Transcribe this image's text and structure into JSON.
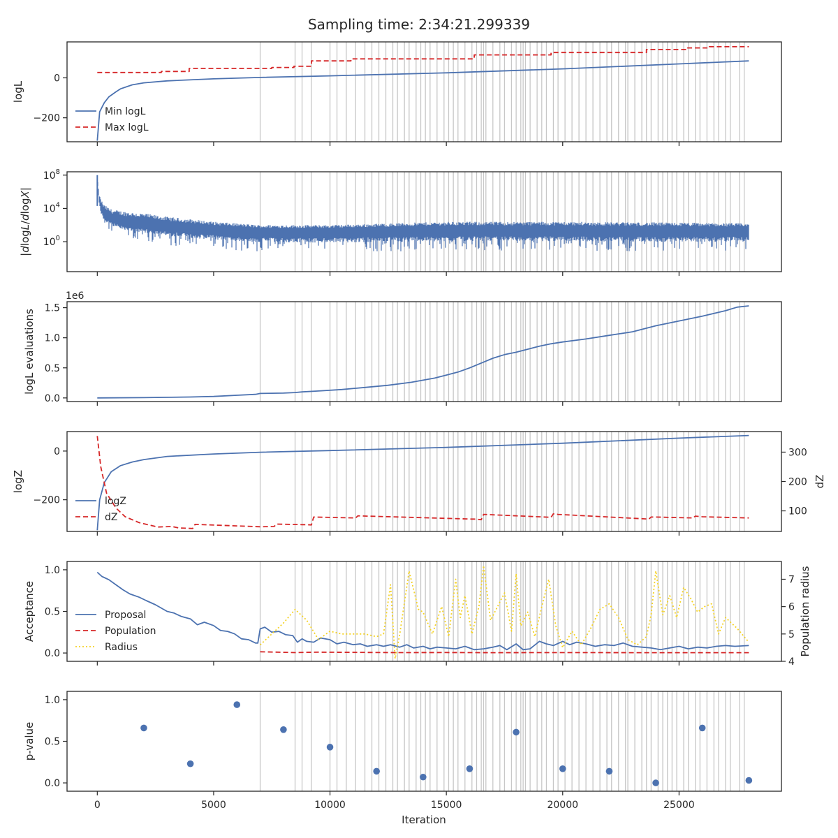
{
  "title": "Sampling time: 2:34:21.299339",
  "xlabel": "Iteration",
  "colors": {
    "blue": "#4c72b0",
    "red": "#d62728",
    "yellow": "#f5d327",
    "vline": "#c8c8c8",
    "axes": "#262626"
  },
  "x_ticks": [
    {
      "value": 0,
      "label": "0"
    },
    {
      "value": 5000,
      "label": "5000"
    },
    {
      "value": 10000,
      "label": "10000"
    },
    {
      "value": 15000,
      "label": "15000"
    },
    {
      "value": 20000,
      "label": "20000"
    },
    {
      "value": 25000,
      "label": "25000"
    }
  ],
  "chart_data": [
    {
      "id": "logL",
      "type": "line",
      "ylabel": "logL",
      "xlim": [
        -1300,
        29400
      ],
      "ylim": [
        -320,
        180
      ],
      "y_ticks": [
        {
          "value": 0,
          "label": "0"
        },
        {
          "value": -200,
          "label": "−200"
        }
      ],
      "legend": [
        "Min logL",
        "Max logL"
      ],
      "series": [
        {
          "name": "Min logL",
          "style": "solid",
          "color": "blue",
          "x": [
            0,
            100,
            300,
            500,
            800,
            1000,
            1500,
            2000,
            3000,
            5000,
            7000,
            10000,
            15000,
            20000,
            25000,
            28000
          ],
          "y": [
            -315,
            -170,
            -125,
            -95,
            -70,
            -55,
            -35,
            -25,
            -15,
            -5,
            2,
            10,
            25,
            45,
            70,
            85
          ]
        },
        {
          "name": "Max logL",
          "style": "dashed",
          "color": "red",
          "x": [
            0,
            2750,
            2750,
            3950,
            3950,
            7500,
            7500,
            8450,
            8450,
            9200,
            9200,
            10900,
            10900,
            16200,
            16200,
            19500,
            19500,
            23600,
            23600,
            25300,
            25300,
            26300,
            26300,
            28000
          ],
          "y": [
            27,
            27,
            32,
            32,
            47,
            47,
            52,
            52,
            58,
            58,
            85,
            85,
            95,
            95,
            115,
            115,
            127,
            127,
            142,
            142,
            150,
            150,
            156,
            156
          ]
        }
      ]
    },
    {
      "id": "dlogL",
      "type": "line",
      "ylabel": "|dlogL/dlogX|",
      "yscale": "log",
      "xlim": [
        -1300,
        29400
      ],
      "ylim": [
        -3.6,
        8.4
      ],
      "y_ticks": [
        {
          "value": 8,
          "label": "10",
          "exp": "8"
        },
        {
          "value": 4,
          "label": "10",
          "exp": "4"
        },
        {
          "value": 0,
          "label": "10",
          "exp": "0"
        }
      ],
      "series": [
        {
          "name": "",
          "style": "noisy",
          "color": "blue",
          "envelope": {
            "x": [
              0,
              30,
              80,
              150,
              300,
              600,
              1000,
              2000,
              3000,
              5000,
              7000,
              10000,
              15000,
              20000,
              25000,
              28000
            ],
            "center": [
              8,
              6.5,
              5.2,
              4.2,
              3.4,
              2.9,
              2.6,
              2.3,
              2.0,
              1.6,
              1.3,
              1.3,
              1.5,
              1.5,
              1.4,
              1.4
            ],
            "spread_up": [
              0,
              0.3,
              0.5,
              0.9,
              1.0,
              1.0,
              1.1,
              1.1,
              1.0,
              0.8,
              0.7,
              0.7,
              0.9,
              0.9,
              0.9,
              0.8
            ],
            "spread_down": [
              0,
              0.8,
              1.0,
              1.4,
              1.6,
              1.8,
              2.0,
              2.2,
              2.4,
              2.5,
              2.5,
              2.6,
              2.6,
              2.6,
              2.6,
              2.5
            ]
          }
        }
      ]
    },
    {
      "id": "evals",
      "type": "line",
      "ylabel": "logL evaluations",
      "offset_text": "1e6",
      "xlim": [
        -1300,
        29400
      ],
      "ylim": [
        -0.06,
        1.6
      ],
      "y_ticks": [
        {
          "value": 0,
          "label": "0.0"
        },
        {
          "value": 0.5,
          "label": "0.5"
        },
        {
          "value": 1.0,
          "label": "1.0"
        },
        {
          "value": 1.5,
          "label": "1.5"
        }
      ],
      "series": [
        {
          "name": "",
          "style": "solid",
          "color": "blue",
          "x": [
            0,
            2000,
            4000,
            5000,
            6000,
            6800,
            7000,
            8000,
            8500,
            8800,
            9500,
            10500,
            11500,
            12500,
            13500,
            14500,
            15000,
            15500,
            16000,
            16500,
            17000,
            17500,
            18000,
            19000,
            19500,
            20000,
            21000,
            22000,
            23000,
            24000,
            25000,
            26000,
            27000,
            27500,
            28000
          ],
          "y": [
            0,
            0.005,
            0.015,
            0.025,
            0.045,
            0.06,
            0.075,
            0.08,
            0.09,
            0.1,
            0.115,
            0.14,
            0.175,
            0.21,
            0.26,
            0.33,
            0.38,
            0.43,
            0.5,
            0.58,
            0.66,
            0.72,
            0.76,
            0.86,
            0.9,
            0.93,
            0.98,
            1.04,
            1.1,
            1.2,
            1.28,
            1.36,
            1.45,
            1.51,
            1.53
          ]
        }
      ]
    },
    {
      "id": "logZ",
      "type": "line",
      "ylabel": "logZ",
      "ylabel2": "dZ",
      "xlim": [
        -1300,
        29400
      ],
      "ylim": [
        -330,
        80
      ],
      "ylim2": [
        30,
        370
      ],
      "y_ticks": [
        {
          "value": 0,
          "label": "0"
        },
        {
          "value": -200,
          "label": "−200"
        }
      ],
      "y2_ticks": [
        {
          "value": 300,
          "label": "300"
        },
        {
          "value": 200,
          "label": "200"
        },
        {
          "value": 100,
          "label": "100"
        }
      ],
      "legend": [
        "logZ",
        "dZ"
      ],
      "series": [
        {
          "name": "logZ",
          "style": "solid",
          "color": "blue",
          "axis": "left",
          "x": [
            0,
            100,
            300,
            600,
            1000,
            1500,
            2000,
            3000,
            5000,
            7000,
            10000,
            15000,
            20000,
            25000,
            28000
          ],
          "y": [
            -325,
            -200,
            -130,
            -85,
            -60,
            -45,
            -35,
            -22,
            -12,
            -5,
            2,
            15,
            32,
            53,
            64
          ]
        },
        {
          "name": "dZ",
          "style": "dashed",
          "color": "red",
          "axis": "right",
          "x": [
            0,
            150,
            400,
            800,
            1200,
            1800,
            2600,
            3200,
            3500,
            4100,
            4200,
            7000,
            7100,
            7600,
            7700,
            8800,
            9000,
            9200,
            9300,
            11100,
            11200,
            16100,
            16200,
            16500,
            16600,
            19500,
            19600,
            19800,
            23700,
            23800,
            24000,
            25600,
            25700,
            26000,
            28000
          ],
          "y": [
            355,
            250,
            160,
            110,
            80,
            60,
            45,
            47,
            42,
            40,
            54,
            46,
            46,
            47,
            55,
            53,
            53,
            52,
            79,
            76,
            83,
            72,
            72,
            70,
            88,
            78,
            90,
            88,
            72,
            79,
            79,
            76,
            82,
            80,
            76
          ]
        }
      ]
    },
    {
      "id": "acceptance",
      "type": "line",
      "ylabel": "Acceptance",
      "ylabel2": "Population radius",
      "xlim": [
        -1300,
        29400
      ],
      "ylim": [
        -0.1,
        1.1
      ],
      "ylim2": [
        4.0,
        7.65
      ],
      "y_ticks": [
        {
          "value": 0,
          "label": "0.0"
        },
        {
          "value": 0.5,
          "label": "0.5"
        },
        {
          "value": 1.0,
          "label": "1.0"
        }
      ],
      "y2_ticks": [
        {
          "value": 4,
          "label": "4"
        },
        {
          "value": 5,
          "label": "5"
        },
        {
          "value": 6,
          "label": "6"
        },
        {
          "value": 7,
          "label": "7"
        }
      ],
      "legend": [
        "Proposal",
        "Population",
        "Radius"
      ],
      "series": [
        {
          "name": "Proposal",
          "style": "solid",
          "color": "blue",
          "axis": "left",
          "x": [
            0,
            200,
            500,
            800,
            1100,
            1400,
            1800,
            2100,
            2500,
            3000,
            3300,
            3600,
            4000,
            4300,
            4600,
            5000,
            5300,
            5600,
            5900,
            6200,
            6500,
            6800,
            6900,
            7000,
            7200,
            7500,
            7800,
            8100,
            8400,
            8600,
            8800,
            9000,
            9300,
            9600,
            10000,
            10300,
            10600,
            11000,
            11300,
            11600,
            12000,
            12300,
            12600,
            13000,
            13300,
            13600,
            14000,
            14300,
            14600,
            15000,
            15400,
            15800,
            16200,
            16600,
            17000,
            17300,
            17600,
            18000,
            18300,
            18600,
            19000,
            19300,
            19600,
            20000,
            20300,
            20600,
            21000,
            21400,
            21800,
            22200,
            22600,
            23000,
            23400,
            23800,
            24200,
            24600,
            25000,
            25400,
            25800,
            26200,
            26600,
            27000,
            27400,
            28000
          ],
          "y": [
            0.97,
            0.92,
            0.88,
            0.82,
            0.76,
            0.71,
            0.67,
            0.63,
            0.58,
            0.5,
            0.48,
            0.44,
            0.41,
            0.34,
            0.37,
            0.33,
            0.27,
            0.26,
            0.23,
            0.17,
            0.16,
            0.12,
            0.12,
            0.29,
            0.31,
            0.25,
            0.26,
            0.22,
            0.21,
            0.13,
            0.17,
            0.14,
            0.13,
            0.18,
            0.16,
            0.11,
            0.13,
            0.1,
            0.11,
            0.08,
            0.1,
            0.08,
            0.1,
            0.07,
            0.1,
            0.06,
            0.08,
            0.05,
            0.07,
            0.06,
            0.05,
            0.08,
            0.04,
            0.05,
            0.07,
            0.09,
            0.04,
            0.11,
            0.04,
            0.05,
            0.14,
            0.11,
            0.09,
            0.14,
            0.1,
            0.13,
            0.11,
            0.08,
            0.1,
            0.09,
            0.12,
            0.08,
            0.07,
            0.06,
            0.04,
            0.06,
            0.08,
            0.05,
            0.07,
            0.06,
            0.08,
            0.09,
            0.08,
            0.09
          ]
        },
        {
          "name": "Population",
          "style": "dashed",
          "color": "red",
          "axis": "left",
          "x": [
            7000,
            8500,
            9500,
            11000,
            13000,
            15000,
            17000,
            19000,
            21000,
            23000,
            25000,
            27000,
            28000
          ],
          "y": [
            0.015,
            0.005,
            0.01,
            0.007,
            0.005,
            0.006,
            0.004,
            0.005,
            0.005,
            0.004,
            0.004,
            0.004,
            0.004
          ]
        },
        {
          "name": "Radius",
          "style": "dotted",
          "color": "yellow",
          "axis": "right",
          "x": [
            7000,
            7500,
            8000,
            8500,
            9000,
            9500,
            10000,
            10500,
            11000,
            11500,
            12000,
            12300,
            12600,
            12800,
            13000,
            13400,
            13800,
            14000,
            14400,
            14800,
            15100,
            15400,
            15600,
            15800,
            16100,
            16400,
            16600,
            16900,
            17200,
            17500,
            17800,
            18000,
            18200,
            18500,
            18800,
            19100,
            19400,
            19700,
            20000,
            20400,
            20800,
            21200,
            21600,
            22000,
            22400,
            22800,
            23200,
            23600,
            23800,
            24000,
            24300,
            24600,
            24900,
            25200,
            25500,
            25800,
            26100,
            26400,
            26700,
            27000,
            27500,
            28000
          ],
          "y": [
            4.6,
            5.0,
            5.4,
            5.9,
            5.5,
            4.8,
            5.1,
            5.0,
            5.0,
            5.0,
            4.9,
            5.0,
            6.8,
            4.1,
            5.0,
            7.3,
            5.9,
            5.8,
            5.0,
            6.0,
            4.9,
            7.0,
            5.6,
            6.4,
            5.0,
            6.0,
            7.5,
            5.5,
            6.0,
            6.5,
            5.1,
            7.2,
            5.3,
            5.8,
            4.9,
            6.0,
            7.0,
            5.3,
            4.5,
            5.1,
            4.6,
            5.2,
            5.9,
            6.1,
            5.6,
            4.8,
            4.6,
            4.9,
            5.7,
            7.3,
            5.7,
            6.4,
            5.6,
            6.7,
            6.3,
            5.8,
            6.0,
            6.1,
            5.0,
            5.6,
            5.2,
            4.7
          ]
        }
      ]
    },
    {
      "id": "pvalue",
      "type": "scatter",
      "ylabel": "p-value",
      "xlim": [
        -1300,
        29400
      ],
      "ylim": [
        -0.1,
        1.1
      ],
      "y_ticks": [
        {
          "value": 0,
          "label": "0.0"
        },
        {
          "value": 0.5,
          "label": "0.5"
        },
        {
          "value": 1.0,
          "label": "1.0"
        }
      ],
      "series": [
        {
          "name": "",
          "style": "marker",
          "color": "blue",
          "x": [
            2000,
            4000,
            6000,
            8000,
            10000,
            12000,
            14000,
            16000,
            18000,
            20000,
            22000,
            24000,
            26000,
            28000
          ],
          "y": [
            0.66,
            0.23,
            0.94,
            0.64,
            0.43,
            0.14,
            0.07,
            0.17,
            0.61,
            0.17,
            0.14,
            0.0,
            0.66,
            0.03
          ]
        }
      ]
    }
  ],
  "insertion_lines": [
    7000,
    8500,
    8800,
    9200,
    10000,
    10300,
    10700,
    11100,
    11500,
    11800,
    12100,
    12400,
    12700,
    12900,
    13200,
    13400,
    13700,
    13900,
    14100,
    14300,
    14600,
    14900,
    15100,
    15300,
    15500,
    15800,
    16100,
    16300,
    16500,
    16600,
    16700,
    17000,
    17300,
    17500,
    17800,
    18000,
    18200,
    18300,
    18400,
    18600,
    18900,
    19100,
    19300,
    19600,
    19800,
    20100,
    20400,
    20700,
    21000,
    21300,
    21600,
    21900,
    22100,
    22400,
    22700,
    22800,
    23100,
    23400,
    23600,
    23800,
    24100,
    24300,
    24500,
    24700,
    24900,
    25200,
    25400,
    25700,
    25900,
    26200,
    26500,
    26700,
    27000,
    27200,
    27600,
    27800
  ]
}
